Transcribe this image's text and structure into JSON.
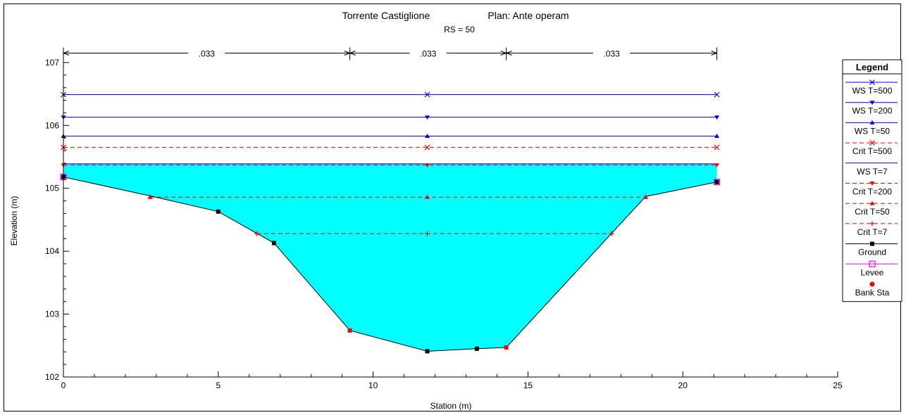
{
  "chart_data": {
    "type": "line",
    "title": "Torrente Castiglione",
    "plan_label": "Plan: Ante operam",
    "subtitle": "RS = 50",
    "xlabel": "Station (m)",
    "ylabel": "Elevation (m)",
    "xlim": [
      0,
      25
    ],
    "ylim": [
      102,
      107.2
    ],
    "xticks": [
      0,
      5,
      10,
      15,
      20,
      25
    ],
    "yticks": [
      102,
      103,
      104,
      105,
      106,
      107
    ],
    "grid": false,
    "legend_position": "right",
    "manning": {
      "values": [
        ".033",
        ".033",
        ".033"
      ],
      "breaks": [
        0,
        9.25,
        14.3,
        21.1
      ],
      "y": 107.15
    },
    "ground": {
      "name": "Ground",
      "x": [
        0,
        2.8,
        5,
        6.8,
        9.25,
        11.75,
        13.35,
        14.3,
        18.8,
        21.1
      ],
      "y": [
        105.18,
        104.88,
        104.63,
        104.13,
        102.74,
        102.41,
        102.45,
        102.47,
        104.87,
        105.1
      ],
      "marker_x": [
        0,
        5,
        6.8,
        11.75,
        13.35,
        21.1
      ],
      "marker_y": [
        105.18,
        104.63,
        104.13,
        102.41,
        102.45,
        105.1
      ]
    },
    "bank_sta": {
      "name": "Bank Sta",
      "x": [
        9.25,
        14.3
      ],
      "y": [
        102.74,
        102.47
      ]
    },
    "levee": {
      "name": "Levee",
      "x": [
        0,
        21.1
      ],
      "y": [
        105.18,
        105.1
      ]
    },
    "water_surface": {
      "x_from": 0,
      "x_to": 21.1,
      "y": 105.39,
      "fill": "#00ffff"
    },
    "series": [
      {
        "name": "WS T=500",
        "y": 106.49,
        "x_from": 0,
        "x_to": 21.1,
        "color": "#0000ff",
        "dash": false,
        "marker": "x",
        "marker_x": [
          0,
          11.75,
          21.1
        ]
      },
      {
        "name": "WS T=200",
        "y": 106.13,
        "x_from": 0,
        "x_to": 21.1,
        "color": "#0000ff",
        "dash": false,
        "marker": "tri-down",
        "marker_x": [
          0,
          11.75,
          21.1
        ]
      },
      {
        "name": "WS T=50",
        "y": 105.83,
        "x_from": 0,
        "x_to": 21.1,
        "color": "#0000ff",
        "dash": false,
        "marker": "tri-up",
        "marker_x": [
          0,
          11.75,
          21.1
        ]
      },
      {
        "name": "Crit T=500",
        "y": 105.65,
        "x_from": 0,
        "x_to": 21.1,
        "color": "#ff0000",
        "dash": true,
        "marker": "x",
        "marker_x": [
          0,
          11.75,
          21.1
        ]
      },
      {
        "name": "WS T=7",
        "y": 105.39,
        "x_from": 0,
        "x_to": 21.1,
        "color": "#0000ff",
        "dash": false,
        "marker": "none",
        "marker_x": []
      },
      {
        "name": "Crit T=200",
        "y": 105.37,
        "x_from": 0,
        "x_to": 21.1,
        "color": "#ff0000",
        "dash": true,
        "marker": "tri-down",
        "marker_x": [
          0,
          11.75,
          21.1
        ]
      },
      {
        "name": "Crit T=50",
        "y": 104.86,
        "x_from": 2.8,
        "x_to": 18.8,
        "color": "#ff0000",
        "dash": true,
        "marker": "tri-up",
        "marker_x": [
          2.8,
          11.75,
          18.8
        ]
      },
      {
        "name": "Crit T=7",
        "y": 104.28,
        "x_from": 6.25,
        "x_to": 17.7,
        "color": "#ff0000",
        "dash": true,
        "marker": "plus",
        "marker_x": [
          6.25,
          11.75,
          17.7
        ]
      }
    ],
    "legend": {
      "title": "Legend",
      "entries": [
        {
          "name": "WS T=500",
          "color": "#0000ff",
          "dash": false,
          "marker": "x"
        },
        {
          "name": "WS T=200",
          "color": "#0000ff",
          "dash": false,
          "marker": "tri-down"
        },
        {
          "name": "WS T=50",
          "color": "#0000ff",
          "dash": false,
          "marker": "tri-up"
        },
        {
          "name": "Crit T=500",
          "color": "#ff0000",
          "dash": true,
          "marker": "x"
        },
        {
          "name": "WS T=7",
          "color": "#0000ff",
          "dash": false,
          "marker": "none"
        },
        {
          "name": "Crit T=200",
          "color": "#ff0000",
          "dash": true,
          "marker": "tri-down"
        },
        {
          "name": "Crit T=50",
          "color": "#ff0000",
          "dash": true,
          "marker": "tri-up"
        },
        {
          "name": "Crit T=7",
          "color": "#ff0000",
          "dash": true,
          "marker": "plus"
        },
        {
          "name": "Ground",
          "color": "#000000",
          "dash": false,
          "marker": "square"
        },
        {
          "name": "Levee",
          "color": "#ff00ff",
          "dash": false,
          "marker": "open-square"
        },
        {
          "name": "Bank Sta",
          "color": "#ff0000",
          "dash": false,
          "marker": "dot-only"
        }
      ]
    }
  }
}
